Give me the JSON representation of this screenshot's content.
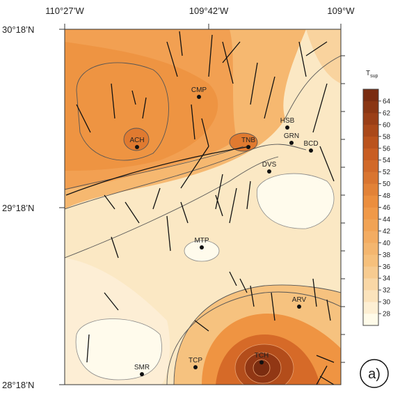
{
  "axes": {
    "top": [
      "110°27’W",
      "109°42’W",
      "109°W"
    ],
    "left": [
      "30°18’N",
      "29°18’N",
      "28°18’N"
    ]
  },
  "stations": [
    "ACH",
    "CMP",
    "TNB",
    "HSB",
    "GRN",
    "BCD",
    "DVS",
    "MTP",
    "ARV",
    "SMR",
    "TCP",
    "TCH"
  ],
  "colorbar": {
    "title": {
      "symbol": "T",
      "subscript": "sup"
    },
    "ticks": [
      "64",
      "62",
      "60",
      "58",
      "56",
      "54",
      "52",
      "50",
      "48",
      "46",
      "44",
      "42",
      "40",
      "38",
      "36",
      "34",
      "32",
      "30",
      "28"
    ],
    "colors": [
      "#fffbe9",
      "#f6c27f",
      "#ef9442",
      "#c65a20",
      "#7a2c10"
    ]
  },
  "panel_label": "a)"
}
